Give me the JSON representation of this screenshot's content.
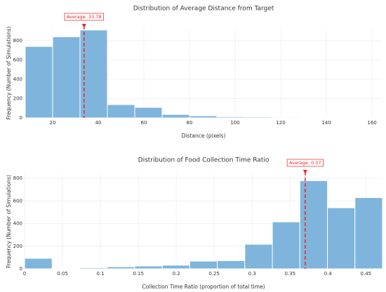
{
  "chart_data": [
    {
      "type": "histogram",
      "title": "Distribution of Average Distance from Target",
      "xlabel": "Distance (pixels)",
      "ylabel": "Frequency (Number of Simulations)",
      "bins": [
        8,
        20,
        32,
        44,
        56,
        68,
        80,
        92,
        104,
        116,
        128,
        140,
        152,
        164
      ],
      "values": [
        740,
        840,
        910,
        138,
        109,
        36,
        22,
        12,
        10,
        8,
        5,
        3,
        2
      ],
      "color": "#7fb5dc",
      "xlim": [
        7.7,
        164.6
      ],
      "ylim": [
        0,
        930
      ],
      "xticks": [
        20,
        40,
        60,
        80,
        100,
        120,
        140,
        160
      ],
      "yticks": [
        0,
        200,
        400,
        600,
        800
      ],
      "grid": true,
      "annotation": {
        "label": "Average: 33.78",
        "x": 33.78
      }
    },
    {
      "type": "histogram",
      "title": "Distribution of Food Collection Time Ratio",
      "xlabel": "Collection Time Ratio (proportion of total time)",
      "ylabel": "Frequency (Number of Simulations)",
      "bins": [
        0,
        0.0363,
        0.0726,
        0.1089,
        0.1452,
        0.1815,
        0.2178,
        0.2541,
        0.2904,
        0.3267,
        0.363,
        0.3993,
        0.4356,
        0.4719
      ],
      "values": [
        93,
        5,
        10,
        18,
        25,
        32,
        68,
        72,
        217,
        415,
        780,
        540,
        630
      ],
      "color": "#7fb5dc",
      "xlim": [
        0,
        0.4719
      ],
      "ylim": [
        0,
        838
      ],
      "xticks": [
        0,
        0.05,
        0.1,
        0.15,
        0.2,
        0.25,
        0.3,
        0.35,
        0.4,
        0.45
      ],
      "yticks": [
        0,
        200,
        400,
        600,
        800
      ],
      "grid": true,
      "annotation": {
        "label": "Average: 0.37",
        "x": 0.37
      }
    }
  ]
}
